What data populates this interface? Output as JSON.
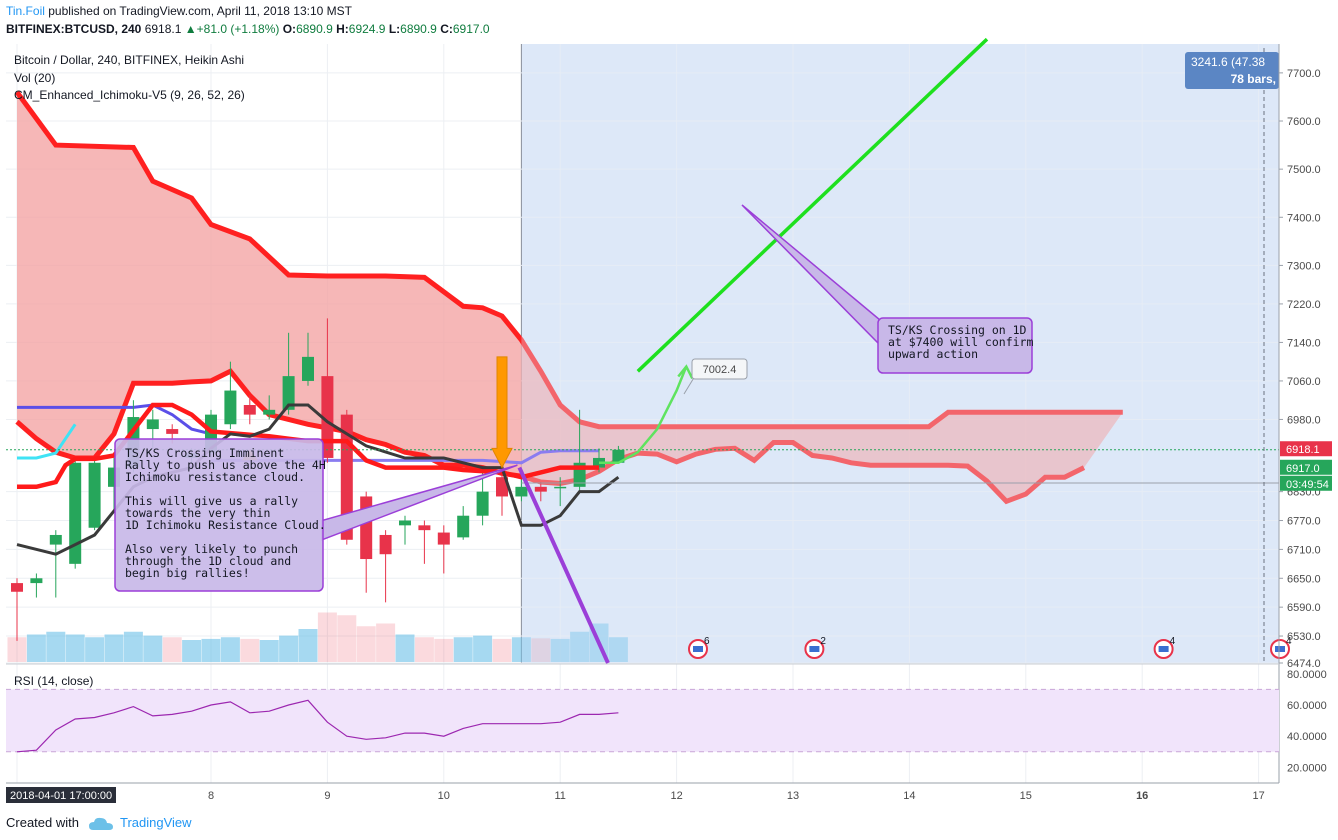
{
  "header": {
    "author": "Tin.Foil",
    "published_text": "published on TradingView.com, April 11, 2018 13:10 MST",
    "symbol": "BITFINEX:BTCUSD, 240",
    "price": "6918.1",
    "change": "+81.0 (+1.18%)",
    "o_label": "O:",
    "o_value": "6890.9",
    "h_label": "H:",
    "h_value": "6924.9",
    "l_label": "L:",
    "l_value": "6890.9",
    "c_label": "C:",
    "c_value": "6917.0"
  },
  "legend": {
    "title": "Bitcoin / Dollar, 240, BITFINEX, Heikin Ashi",
    "vol": "Vol (20)",
    "ichimoku": "CM_Enhanced_Ichimoku-V5 (9, 26, 52, 26)",
    "rsi": "RSI (14, close)"
  },
  "footer": {
    "created_with": "Created with",
    "brand": "TradingView"
  },
  "colors": {
    "up": "#26a65b",
    "down": "#e8334a",
    "cloud_bear": "#f4a3a3",
    "projection_bg": "#dde9f8",
    "annotation_fill": "#c8b8e8",
    "annotation_border": "#9b3fd8",
    "green_line": "#1ee01e",
    "rsi_band": "#f1e4fb",
    "rsi_line": "#9c27b0"
  },
  "chart_data": {
    "type": "candlestick",
    "title": "Bitcoin / Dollar, 240, BITFINEX, Heikin Ashi",
    "ylim": [
      6474,
      7760
    ],
    "yticks": [
      7700.0,
      7600.0,
      7500.0,
      7400.0,
      7300.0,
      7220.0,
      7140.0,
      7060.0,
      6980.0,
      6830.0,
      6770.0,
      6710.0,
      6650.0,
      6590.0,
      6530.0,
      6474.0
    ],
    "xticks": [
      {
        "label": "2018-04-01 17:00:00",
        "i": 0,
        "highlight": true
      },
      {
        "label": "8",
        "i": 10
      },
      {
        "label": "9",
        "i": 16
      },
      {
        "label": "10",
        "i": 22
      },
      {
        "label": "11",
        "i": 28
      },
      {
        "label": "12",
        "i": 34
      },
      {
        "label": "13",
        "i": 40
      },
      {
        "label": "14",
        "i": 46
      },
      {
        "label": "15",
        "i": 52
      },
      {
        "label": "16",
        "i": 58,
        "bold": true
      },
      {
        "label": "17",
        "i": 64
      }
    ],
    "candles": [
      [
        6640,
        6622,
        6650,
        6520
      ],
      [
        6640,
        6650,
        6660,
        6610
      ],
      [
        6720,
        6740,
        6750,
        6610
      ],
      [
        6680,
        6890,
        6900,
        6670
      ],
      [
        6755,
        6890,
        6900,
        6750
      ],
      [
        6840,
        6880,
        6900,
        6790
      ],
      [
        6880,
        6985,
        7020,
        6870
      ],
      [
        6960,
        6980,
        7000,
        6920
      ],
      [
        6960,
        6950,
        6970,
        6930
      ],
      [
        6900,
        6910,
        6920,
        6890
      ],
      [
        6910,
        6990,
        7000,
        6900
      ],
      [
        6970,
        7040,
        7100,
        6960
      ],
      [
        7010,
        6990,
        7030,
        6970
      ],
      [
        6990,
        7000,
        7030,
        6980
      ],
      [
        7000,
        7070,
        7160,
        6990
      ],
      [
        7060,
        7110,
        7160,
        7050
      ],
      [
        7070,
        6900,
        7190,
        6890
      ],
      [
        6990,
        6730,
        7000,
        6720
      ],
      [
        6820,
        6690,
        6830,
        6620
      ],
      [
        6740,
        6700,
        6750,
        6600
      ],
      [
        6760,
        6770,
        6780,
        6720
      ],
      [
        6760,
        6750,
        6770,
        6680
      ],
      [
        6745,
        6720,
        6760,
        6660
      ],
      [
        6735,
        6780,
        6800,
        6730
      ],
      [
        6780,
        6830,
        6870,
        6760
      ],
      [
        6860,
        6820,
        6870,
        6780
      ],
      [
        6820,
        6840,
        6860,
        6810
      ],
      [
        6840,
        6830,
        6850,
        6810
      ],
      [
        6840,
        6840,
        6860,
        6800
      ],
      [
        6840,
        6890,
        7000,
        6830
      ],
      [
        6880,
        6900,
        6920,
        6870
      ],
      [
        6890,
        6917,
        6925,
        6890
      ]
    ],
    "volume": [
      0.45,
      0.5,
      0.55,
      0.5,
      0.45,
      0.5,
      0.55,
      0.48,
      0.45,
      0.4,
      0.42,
      0.45,
      0.42,
      0.4,
      0.48,
      0.6,
      0.9,
      0.85,
      0.65,
      0.7,
      0.5,
      0.45,
      0.42,
      0.45,
      0.48,
      0.42,
      0.45,
      0.43,
      0.42,
      0.55,
      0.7,
      0.45
    ],
    "cloud_upper": [
      [
        0,
        7660
      ],
      [
        2,
        7550
      ],
      [
        6,
        7545
      ],
      [
        7,
        7475
      ],
      [
        9,
        7440
      ],
      [
        10,
        7385
      ],
      [
        12,
        7355
      ],
      [
        14,
        7280
      ],
      [
        16,
        7278
      ],
      [
        19,
        7278
      ],
      [
        21,
        7275
      ],
      [
        23,
        7215
      ],
      [
        24,
        7212
      ],
      [
        25,
        7195
      ],
      [
        26,
        7145
      ],
      [
        27,
        7080
      ],
      [
        28,
        7010
      ],
      [
        29,
        6975
      ],
      [
        30,
        6965
      ],
      [
        31,
        6965
      ],
      [
        33,
        6965
      ],
      [
        36,
        6965
      ],
      [
        39,
        6965
      ],
      [
        42,
        6965
      ],
      [
        45,
        6965
      ],
      [
        47,
        6965
      ],
      [
        48,
        6995
      ],
      [
        50,
        6995
      ],
      [
        53,
        6995
      ],
      [
        57,
        6995
      ]
    ],
    "cloud_lower": [
      [
        0,
        6975
      ],
      [
        1,
        6940
      ],
      [
        2,
        6912
      ],
      [
        3,
        6900
      ],
      [
        4,
        6900
      ],
      [
        5,
        6950
      ],
      [
        6,
        7055
      ],
      [
        8,
        7055
      ],
      [
        9,
        7058
      ],
      [
        10,
        7060
      ],
      [
        11,
        7080
      ],
      [
        12,
        7030
      ],
      [
        13,
        6990
      ],
      [
        14,
        6980
      ],
      [
        15,
        6970
      ],
      [
        17,
        6955
      ],
      [
        18,
        6938
      ],
      [
        19,
        6928
      ],
      [
        20,
        6912
      ],
      [
        21,
        6905
      ],
      [
        22,
        6885
      ],
      [
        23,
        6885
      ],
      [
        24,
        6880
      ],
      [
        25,
        6868
      ],
      [
        26,
        6862
      ],
      [
        27,
        6850
      ],
      [
        28,
        6847
      ],
      [
        29,
        6855
      ],
      [
        30,
        6872
      ],
      [
        31,
        6897
      ],
      [
        32,
        6910
      ],
      [
        33,
        6908
      ],
      [
        34,
        6892
      ],
      [
        35,
        6908
      ],
      [
        36,
        6918
      ],
      [
        37,
        6920
      ],
      [
        38,
        6895
      ],
      [
        39,
        6932
      ],
      [
        40,
        6932
      ],
      [
        41,
        6905
      ],
      [
        42,
        6900
      ],
      [
        43,
        6890
      ],
      [
        44,
        6885
      ],
      [
        45,
        6885
      ],
      [
        46,
        6885
      ],
      [
        48,
        6885
      ],
      [
        49,
        6883
      ],
      [
        50,
        6852
      ],
      [
        51,
        6810
      ],
      [
        52,
        6825
      ],
      [
        53,
        6860
      ],
      [
        54,
        6860
      ],
      [
        55,
        6880
      ]
    ],
    "tenkan": [
      [
        0,
        6840
      ],
      [
        1,
        6840
      ],
      [
        2,
        6850
      ],
      [
        2.5,
        6885
      ],
      [
        3,
        6898
      ],
      [
        4,
        6898
      ],
      [
        5,
        6905
      ],
      [
        7,
        7010
      ],
      [
        8,
        7010
      ],
      [
        9,
        6990
      ],
      [
        10,
        6955
      ],
      [
        12,
        6948
      ],
      [
        13,
        6945
      ],
      [
        14,
        6940
      ],
      [
        15,
        6935
      ],
      [
        17,
        6935
      ],
      [
        18,
        6895
      ],
      [
        19,
        6880
      ],
      [
        22,
        6880
      ],
      [
        23,
        6875
      ],
      [
        25,
        6870
      ],
      [
        26,
        6860
      ],
      [
        27,
        6870
      ],
      [
        28,
        6880
      ],
      [
        29,
        6880
      ],
      [
        30,
        6880
      ]
    ],
    "kijun": [
      [
        0,
        6720
      ],
      [
        2,
        6700
      ],
      [
        3,
        6720
      ],
      [
        4,
        6740
      ],
      [
        5,
        6790
      ],
      [
        6,
        6840
      ],
      [
        7,
        6860
      ],
      [
        9,
        6880
      ],
      [
        10,
        6920
      ],
      [
        11,
        6950
      ],
      [
        12,
        6945
      ],
      [
        13,
        6960
      ],
      [
        14,
        7010
      ],
      [
        15,
        7010
      ],
      [
        16,
        6975
      ],
      [
        18,
        6925
      ],
      [
        20,
        6900
      ],
      [
        22,
        6900
      ],
      [
        24,
        6880
      ],
      [
        25,
        6880
      ],
      [
        26,
        6760
      ],
      [
        27,
        6760
      ],
      [
        28,
        6780
      ],
      [
        29,
        6830
      ],
      [
        30,
        6830
      ],
      [
        31,
        6860
      ]
    ],
    "kijun_blue": [
      [
        0,
        7005
      ],
      [
        3,
        7005
      ],
      [
        6,
        7005
      ],
      [
        7,
        7010
      ],
      [
        8,
        6990
      ],
      [
        9,
        6960
      ],
      [
        10,
        6950
      ]
    ],
    "green_arrow": [
      [
        30,
        6890
      ],
      [
        31,
        6890
      ],
      [
        32,
        6912
      ],
      [
        33,
        6960
      ],
      [
        34,
        7040
      ],
      [
        34.5,
        7090
      ]
    ],
    "projection_line": [
      [
        32,
        7080
      ],
      [
        50,
        7770
      ]
    ],
    "price_axis_labels": [
      {
        "text": "6918.1",
        "bg": "#e8334a"
      },
      {
        "text": "6917.0",
        "bg": "#26a65b"
      },
      {
        "text": "03:49:54",
        "bg": "#26a65b"
      }
    ],
    "range_box": {
      "text1": "3241.6 (47.38",
      "text2": "78 bars,"
    },
    "price_callout": "7002.4",
    "annotations": [
      {
        "text": [
          "TS/KS Crossing Imminent",
          "Rally to push us above the 4H",
          "Ichimoku resistance cloud.",
          "",
          "This will give us a rally",
          "towards the very thin",
          "1D Ichimoku Resistance Cloud.",
          "",
          "Also very likely to punch",
          "through the 1D cloud and",
          "begin big rallies!"
        ]
      },
      {
        "text": [
          "TS/KS Crossing on 1D",
          "at $7400 will confirm",
          "upward action"
        ]
      }
    ],
    "event_badges": [
      {
        "i": 35,
        "count": "6"
      },
      {
        "i": 41,
        "count": "2"
      },
      {
        "i": 59,
        "count": "4"
      },
      {
        "i": 65,
        "count": "4"
      }
    ],
    "rsi": {
      "ylim": [
        10,
        85
      ],
      "yticks": [
        "80.0000",
        "60.0000",
        "40.0000",
        "20.0000"
      ],
      "band": [
        30,
        70
      ],
      "values": [
        [
          0,
          30
        ],
        [
          1,
          31
        ],
        [
          2,
          44
        ],
        [
          3,
          51
        ],
        [
          4,
          52
        ],
        [
          5,
          55
        ],
        [
          6,
          59
        ],
        [
          7,
          53
        ],
        [
          8,
          54
        ],
        [
          9,
          56
        ],
        [
          10,
          60
        ],
        [
          11,
          62
        ],
        [
          12,
          55
        ],
        [
          13,
          56
        ],
        [
          14,
          60
        ],
        [
          15,
          63
        ],
        [
          16,
          49
        ],
        [
          17,
          40
        ],
        [
          18,
          38
        ],
        [
          19,
          39
        ],
        [
          20,
          42
        ],
        [
          21,
          42
        ],
        [
          22,
          40
        ],
        [
          23,
          45
        ],
        [
          24,
          48
        ],
        [
          25,
          48
        ],
        [
          26,
          48
        ],
        [
          27,
          48
        ],
        [
          28,
          49
        ],
        [
          29,
          54
        ],
        [
          30,
          54
        ],
        [
          31,
          55
        ]
      ]
    }
  }
}
